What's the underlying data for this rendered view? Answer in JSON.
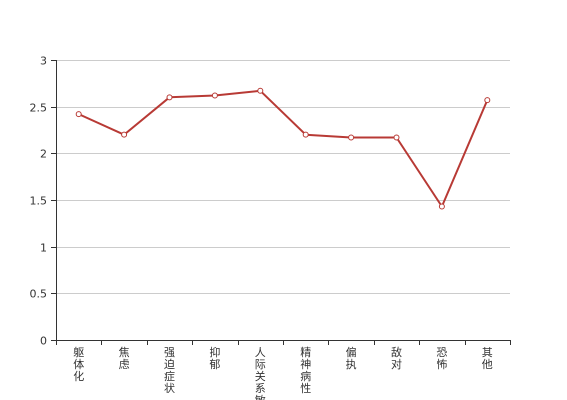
{
  "chart_data": {
    "type": "line",
    "title": "",
    "xlabel": "",
    "ylabel": "",
    "categories": [
      "躯体化",
      "焦虑",
      "强迫症状",
      "抑郁",
      "人际关系敏感",
      "精神病性",
      "偏执",
      "敌对",
      "恐怖",
      "其他"
    ],
    "series": [
      {
        "values": [
          2.42,
          2.2,
          2.6,
          2.62,
          2.67,
          2.2,
          2.17,
          2.17,
          1.43,
          2.57
        ]
      }
    ],
    "ylim": [
      0,
      3
    ],
    "yticks": [
      "0",
      "0.5",
      "1",
      "1.5",
      "2",
      "2.5",
      "3"
    ],
    "grid": true,
    "colors": {
      "line": "#b83a35",
      "grid": "#cccccc",
      "axis": "#333333"
    }
  }
}
